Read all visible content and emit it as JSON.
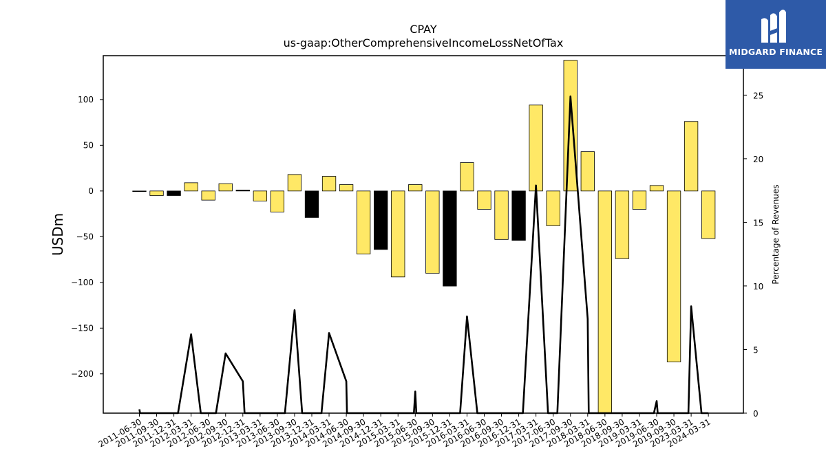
{
  "chart_data": {
    "type": "bar",
    "title": "CPAY",
    "subtitle": "us-gaap:OtherComprehensiveIncomeLossNetOfTax",
    "ylabel": "USDm",
    "y2label": "Percentage of Revenues",
    "ylim": [
      -243,
      148
    ],
    "y2lim": [
      0,
      28.1
    ],
    "yticks": [
      -200,
      -150,
      -100,
      -50,
      0,
      50,
      100
    ],
    "y2ticks": [
      0,
      5,
      10,
      15,
      20,
      25
    ],
    "categories": [
      "2011-06-30",
      "2011-09-30",
      "2011-12-31",
      "2012-03-31",
      "2012-06-30",
      "2012-09-30",
      "2012-12-31",
      "2013-03-31",
      "2013-06-30",
      "2013-09-30",
      "2013-12-31",
      "2014-03-31",
      "2014-06-30",
      "2014-09-30",
      "2014-12-31",
      "2015-03-31",
      "2015-06-30",
      "2015-09-30",
      "2015-12-31",
      "2016-03-31",
      "2016-06-30",
      "2016-09-30",
      "2016-12-31",
      "2017-03-31",
      "2017-06-30",
      "2017-09-30",
      "2018-03-31",
      "2018-06-30",
      "2018-09-30",
      "2019-03-31",
      "2019-06-30",
      "2019-09-30",
      "2023-03-31",
      "2024-03-31"
    ],
    "series": [
      {
        "values": [
          -0.5,
          -5,
          -5,
          9,
          -10,
          8,
          1,
          -11,
          -23,
          18,
          -29,
          16,
          7,
          -69,
          -64,
          -94,
          7,
          -90,
          -104,
          31,
          -20,
          -53,
          -54,
          94,
          -38,
          143,
          43,
          -243,
          -74,
          -20,
          6,
          -187,
          76,
          -52
        ],
        "colors": [
          "#000000",
          "#ffe866",
          "#000000",
          "#ffe866",
          "#ffe866",
          "#ffe866",
          "#000000",
          "#ffe866",
          "#ffe866",
          "#ffe866",
          "#000000",
          "#ffe866",
          "#ffe866",
          "#ffe866",
          "#000000",
          "#ffe866",
          "#ffe866",
          "#ffe866",
          "#000000",
          "#ffe866",
          "#ffe866",
          "#ffe866",
          "#000000",
          "#ffe866",
          "#ffe866",
          "#ffe866",
          "#ffe866",
          "#ffe866",
          "#ffe866",
          "#ffe866",
          "#ffe866",
          "#ffe866",
          "#ffe866",
          "#ffe866"
        ]
      },
      {
        "axis": "right",
        "type": "line",
        "color": "#000000",
        "points": [
          [
            0,
            0.3
          ],
          [
            0.04,
            0
          ],
          [
            2.24,
            0
          ],
          [
            3,
            6.2
          ],
          [
            3.56,
            0
          ],
          [
            4.44,
            0
          ],
          [
            5,
            4.7
          ],
          [
            6,
            2.5
          ],
          [
            6.1,
            0
          ],
          [
            8.44,
            0
          ],
          [
            9,
            8.1
          ],
          [
            9.44,
            0
          ],
          [
            10.56,
            0
          ],
          [
            11,
            6.3
          ],
          [
            12,
            2.5
          ],
          [
            12.04,
            0
          ],
          [
            15.92,
            0
          ],
          [
            16,
            1.7
          ],
          [
            16.06,
            0
          ],
          [
            18.6,
            0
          ],
          [
            19,
            7.6
          ],
          [
            19.6,
            0
          ],
          [
            22.24,
            0
          ],
          [
            23,
            17.9
          ],
          [
            23.7,
            0
          ],
          [
            24.24,
            0
          ],
          [
            25,
            24.9
          ],
          [
            26,
            7.4
          ],
          [
            26.06,
            0
          ],
          [
            29.84,
            0
          ],
          [
            30,
            0.95
          ],
          [
            30.06,
            0
          ],
          [
            31.84,
            0
          ],
          [
            32,
            8.4
          ],
          [
            32.6,
            0
          ],
          [
            33,
            0
          ]
        ]
      }
    ],
    "legend": "none",
    "grid": false
  },
  "logo": {
    "text": "MIDGARD FINANCE",
    "bg": "#2e5aa8",
    "icon": "midgard-logo-icon"
  }
}
